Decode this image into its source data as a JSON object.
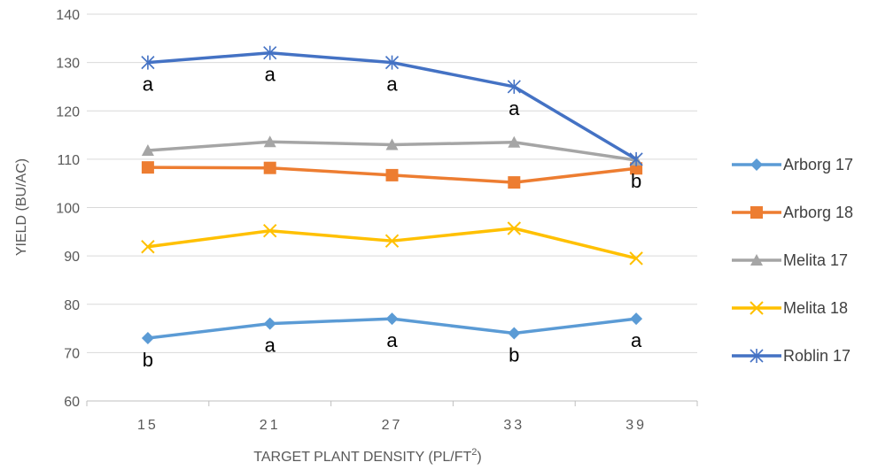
{
  "chart_data": {
    "type": "line",
    "xlabel": "TARGET PLANT DENSITY (PL/FT",
    "xlabel_sup": "2",
    "xlabel_end": ")",
    "ylabel": "YIELD (BU/AC)",
    "categories": [
      "15",
      "21",
      "27",
      "33",
      "39"
    ],
    "ylim": [
      60,
      140
    ],
    "yticks": [
      60,
      70,
      80,
      90,
      100,
      110,
      120,
      130,
      140
    ],
    "grid": "horizontal",
    "legend_position": "right",
    "series": [
      {
        "name": "Arborg 17",
        "values": [
          73,
          76,
          77,
          74,
          77
        ],
        "color": "#5B9BD5",
        "marker": "diamond",
        "labels": [
          "b",
          "a",
          "a",
          "b",
          "a"
        ],
        "label_position": "below"
      },
      {
        "name": "Arborg 18",
        "values": [
          108.3,
          108.2,
          106.7,
          105.2,
          108.1
        ],
        "color": "#ED7D31",
        "marker": "square"
      },
      {
        "name": "Melita 17",
        "values": [
          111.8,
          113.6,
          113,
          113.5,
          109.8
        ],
        "color": "#A5A5A5",
        "marker": "triangle"
      },
      {
        "name": "Melita 18",
        "values": [
          91.9,
          95.2,
          93.1,
          95.7,
          89.5
        ],
        "color": "#FFC000",
        "marker": "x"
      },
      {
        "name": "Roblin 17",
        "values": [
          130,
          132,
          130,
          125,
          110
        ],
        "color": "#4472C4",
        "marker": "star",
        "labels": [
          "a",
          "a",
          "a",
          "a",
          "b"
        ],
        "label_position": "below"
      }
    ]
  }
}
